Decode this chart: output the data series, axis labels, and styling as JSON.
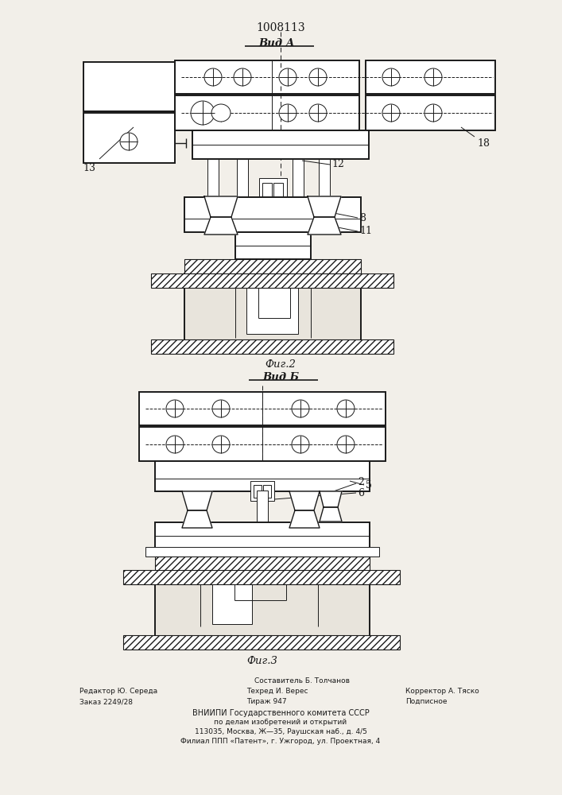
{
  "title": "1008113",
  "fig_width": 7.07,
  "fig_height": 10.0,
  "bg_color": "#f2efe9",
  "line_color": "#1a1a1a",
  "vid_a": "Вид А",
  "vid_b": "Вид Б",
  "fig2": "Фиг.2",
  "fig3": "Фиг.3",
  "label_13": "13",
  "label_18": "18",
  "label_12": "12",
  "label_8": "8",
  "label_11": "11",
  "label_2": "2",
  "label_6": "6",
  "label_5": "5",
  "footer_line1": "Составитель Б. Толчанов",
  "footer_line2_left": "Редактор Ю. Середа",
  "footer_line2_mid": "Техред И. Верес",
  "footer_line2_right": "Корректор А. Тяско",
  "footer_line3_left": "Заказ 2249/28",
  "footer_line3_mid": "Тираж 947",
  "footer_line3_right": "Подписное",
  "footer_vniipи": "ВНИИПИ Государственного комитета СССР",
  "footer_po": "по делам изобретений и открытий",
  "footer_addr1": "113035, Москва, Ж—35, Раушская наб., д. 4/5",
  "footer_addr2": "Филиал ППП «Патент», г. Ужгород, ул. Проектная, 4"
}
